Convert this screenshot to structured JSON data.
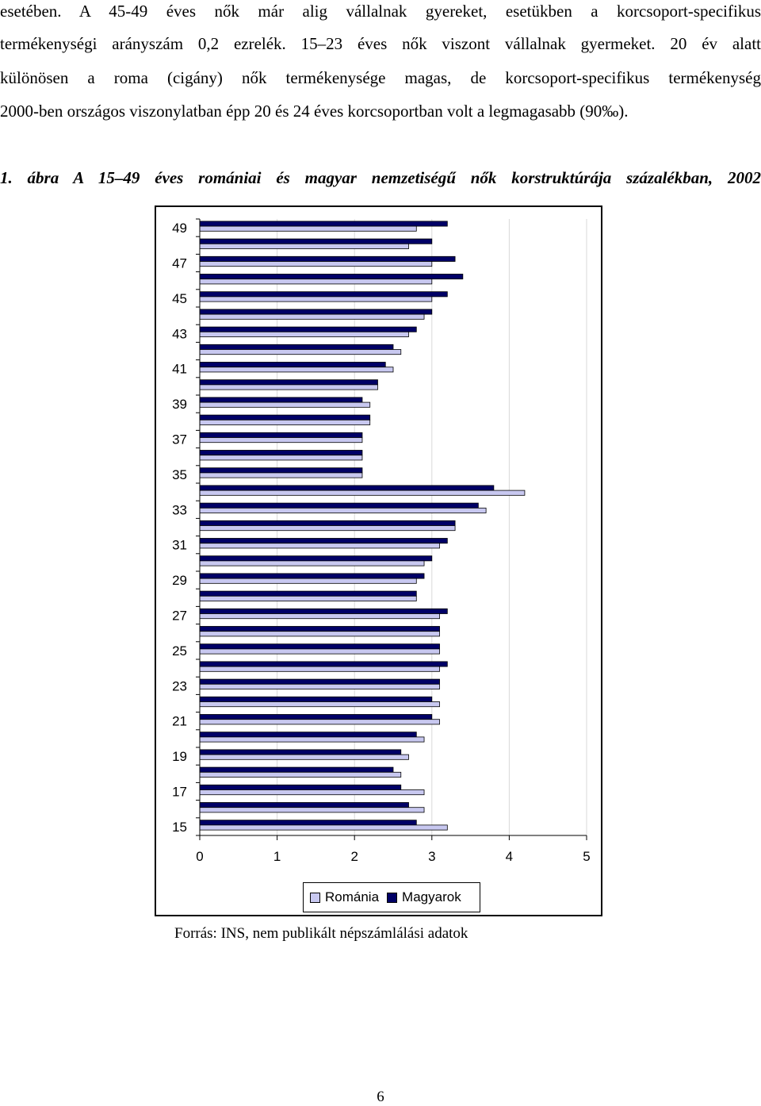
{
  "text_lines": [
    "esetében. A 45-49 éves nők már alig vállalnak gyereket, esetükben a korcsoport-specifikus",
    "termékenységi arányszám 0,2 ezrelék. 15–23 éves nők viszont vállalnak gyermeket. 20 év alatt",
    "különösen a roma (cigány) nők termékenysége magas, de korcsoport-specifikus termékenység",
    "2000-ben országos viszonylatban épp 20 és 24 éves korcsoportban volt a legmagasabb (90‰)."
  ],
  "caption": "1. ábra A 15–49 éves romániai és magyar nemzetiségű nők korstruktúrája százalékban, 2002",
  "source": "Forrás: INS, nem publikált népszámlálási adatok",
  "page_number": "6",
  "colors": {
    "romania": "#c8c8f0",
    "magyarok": "#000066",
    "grid": "#d9d9d9"
  },
  "chart_data": {
    "type": "bar",
    "orientation": "horizontal",
    "title": "",
    "xlabel": "",
    "ylabel": "",
    "xlim": [
      0,
      5
    ],
    "x_ticks": [
      "0",
      "1",
      "2",
      "3",
      "4",
      "5"
    ],
    "y_tick_labels": [
      "49",
      "47",
      "45",
      "43",
      "41",
      "39",
      "37",
      "35",
      "33",
      "31",
      "29",
      "27",
      "25",
      "23",
      "21",
      "19",
      "17",
      "15"
    ],
    "grid": "vertical",
    "legend_position": "bottom",
    "categories": [
      49,
      48,
      47,
      46,
      45,
      44,
      43,
      42,
      41,
      40,
      39,
      38,
      37,
      36,
      35,
      34,
      33,
      32,
      31,
      30,
      29,
      28,
      27,
      26,
      25,
      24,
      23,
      22,
      21,
      20,
      19,
      18,
      17,
      16,
      15
    ],
    "series": [
      {
        "name": "Magyarok",
        "values": [
          3.2,
          3.0,
          3.3,
          3.4,
          3.2,
          3.0,
          2.8,
          2.5,
          2.4,
          2.3,
          2.1,
          2.2,
          2.1,
          2.1,
          2.1,
          3.8,
          3.6,
          3.3,
          3.2,
          3.0,
          2.9,
          2.8,
          3.2,
          3.1,
          3.1,
          3.2,
          3.1,
          3.0,
          3.0,
          2.8,
          2.6,
          2.5,
          2.6,
          2.7,
          2.8
        ]
      },
      {
        "name": "Románia",
        "values": [
          2.8,
          2.7,
          3.0,
          3.0,
          3.0,
          2.9,
          2.7,
          2.6,
          2.5,
          2.3,
          2.2,
          2.2,
          2.1,
          2.1,
          2.1,
          4.2,
          3.7,
          3.3,
          3.1,
          2.9,
          2.8,
          2.8,
          3.1,
          3.1,
          3.1,
          3.1,
          3.1,
          3.1,
          3.1,
          2.9,
          2.7,
          2.6,
          2.9,
          2.9,
          3.2
        ]
      }
    ]
  }
}
